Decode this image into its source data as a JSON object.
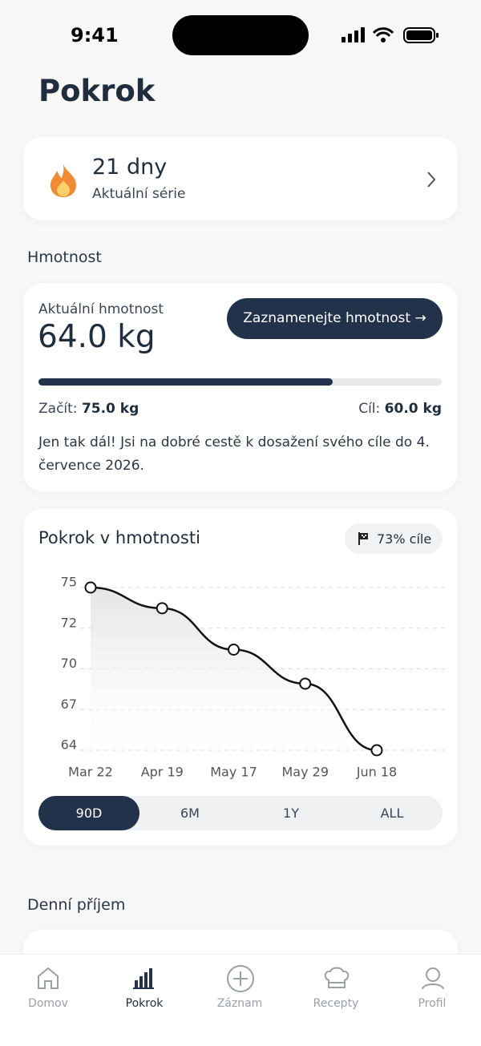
{
  "status_bar": {
    "time": "9:41"
  },
  "header": {
    "title": "Pokrok"
  },
  "streak_card": {
    "value": "21 dny",
    "label": "Aktuální série"
  },
  "weight_section": {
    "title": "Hmotnost",
    "current_label": "Aktuální hmotnost",
    "current_value": "64.0 kg",
    "button": "Zaznamenejte hmotnost →",
    "progress": 73,
    "start_label": "Začít:",
    "start_value": "75.0 kg",
    "goal_label": "Cíl:",
    "goal_value": "60.0 kg",
    "message": "Jen tak dál! Jsi na dobré cestě k dosažení svého cíle do 4. července 2026."
  },
  "chart_data": {
    "type": "line",
    "title": "Pokrok v hmotnosti",
    "badge": "73% cíle",
    "categories": [
      "Mar 22",
      "Apr 19",
      "May 17",
      "May 29",
      "Jun 18"
    ],
    "series": [
      {
        "color": "#111111",
        "values": [
          75,
          73.6,
          70.8,
          68.5,
          64
        ]
      }
    ],
    "ylim": [
      64,
      75
    ],
    "yticks": [
      {
        "value": 64,
        "label": "64"
      },
      {
        "value": 66.75,
        "label": "67"
      },
      {
        "value": 69.5,
        "label": "70"
      },
      {
        "value": 72.25,
        "label": "72"
      },
      {
        "value": 75,
        "label": "75"
      }
    ],
    "grid": true
  },
  "range_tabs": {
    "options": [
      "90D",
      "6M",
      "1Y",
      "ALL"
    ],
    "selected": 0
  },
  "daily_section": {
    "title": "Denní příjem"
  },
  "tab_bar": {
    "items": [
      "Domov",
      "Pokrok",
      "Záznam",
      "Recepty",
      "Profil"
    ],
    "active": 1
  }
}
